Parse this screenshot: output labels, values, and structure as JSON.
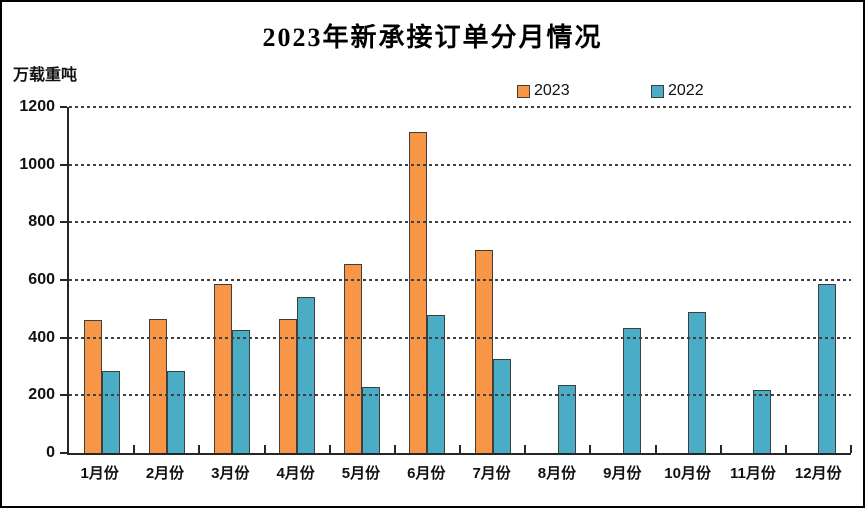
{
  "chart_data": {
    "type": "bar",
    "title": "2023年新承接订单分月情况",
    "y_axis_unit": "万载重吨",
    "ylabel": "万载重吨",
    "xlabel": "",
    "ylim": [
      0,
      1200
    ],
    "y_ticks": [
      1200,
      1000,
      800,
      600,
      400,
      200,
      0
    ],
    "grid": "horizontal-dashed",
    "legend_position": "top-center",
    "categories": [
      "1月份",
      "2月份",
      "3月份",
      "4月份",
      "5月份",
      "6月份",
      "7月份",
      "8月份",
      "9月份",
      "10月份",
      "11月份",
      "12月份"
    ],
    "series": [
      {
        "name": "2023",
        "color": "#F79646",
        "values": [
          460,
          465,
          585,
          465,
          655,
          1115,
          705,
          null,
          null,
          null,
          null,
          null
        ]
      },
      {
        "name": "2022",
        "color": "#4BACC6",
        "values": [
          285,
          285,
          425,
          540,
          230,
          480,
          325,
          235,
          435,
          490,
          220,
          585
        ]
      }
    ],
    "colors": {
      "bar_border": "#3F3F3F",
      "axis": "#262626",
      "gridline": "#404040"
    }
  }
}
